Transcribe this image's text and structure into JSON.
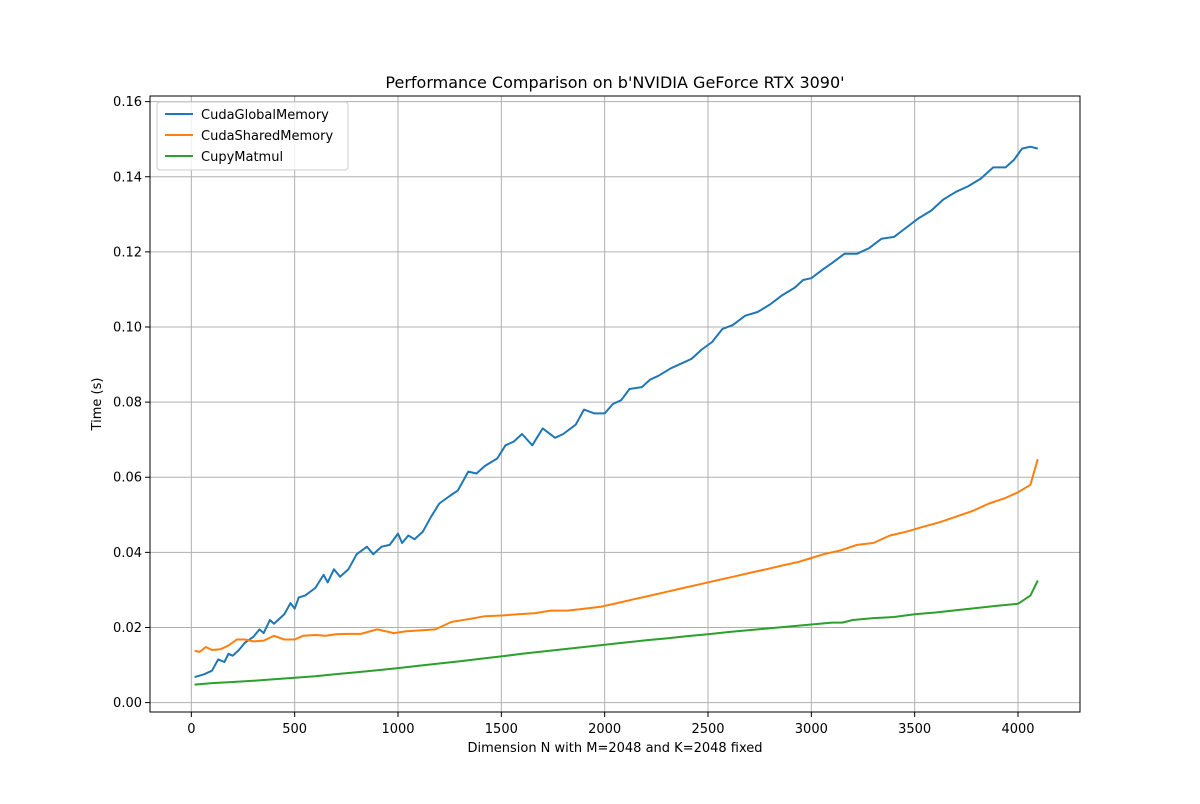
{
  "chart_data": {
    "type": "line",
    "title": "Performance Comparison on b'NVIDIA GeForce RTX 3090'",
    "xlabel": "Dimension N with M=2048 and K=2048 fixed",
    "ylabel": "Time (s)",
    "xlim": [
      -200,
      4300
    ],
    "ylim": [
      -0.0025,
      0.1615
    ],
    "xticks": [
      0,
      500,
      1000,
      1500,
      2000,
      2500,
      3000,
      3500,
      4000
    ],
    "yticks": [
      0.0,
      0.02,
      0.04,
      0.06,
      0.08,
      0.1,
      0.12,
      0.14,
      0.16
    ],
    "xtick_labels": [
      "0",
      "500",
      "1000",
      "1500",
      "2000",
      "2500",
      "3000",
      "3500",
      "4000"
    ],
    "ytick_labels": [
      "0.00",
      "0.02",
      "0.04",
      "0.06",
      "0.08",
      "0.10",
      "0.12",
      "0.14",
      "0.16"
    ],
    "grid": true,
    "legend_position": "top-left",
    "series": [
      {
        "name": "CudaGlobalMemory",
        "color": "#1f77b4",
        "points": [
          [
            16,
            0.0068
          ],
          [
            60,
            0.0075
          ],
          [
            100,
            0.0085
          ],
          [
            130,
            0.0115
          ],
          [
            160,
            0.0108
          ],
          [
            180,
            0.013
          ],
          [
            200,
            0.0125
          ],
          [
            230,
            0.014
          ],
          [
            260,
            0.016
          ],
          [
            300,
            0.0175
          ],
          [
            330,
            0.0195
          ],
          [
            350,
            0.0185
          ],
          [
            380,
            0.022
          ],
          [
            400,
            0.021
          ],
          [
            450,
            0.0235
          ],
          [
            480,
            0.0265
          ],
          [
            500,
            0.025
          ],
          [
            520,
            0.028
          ],
          [
            550,
            0.0285
          ],
          [
            600,
            0.0305
          ],
          [
            640,
            0.034
          ],
          [
            660,
            0.032
          ],
          [
            690,
            0.0355
          ],
          [
            720,
            0.0335
          ],
          [
            760,
            0.0355
          ],
          [
            800,
            0.0395
          ],
          [
            850,
            0.0415
          ],
          [
            880,
            0.0395
          ],
          [
            920,
            0.0415
          ],
          [
            960,
            0.042
          ],
          [
            1000,
            0.045
          ],
          [
            1020,
            0.0425
          ],
          [
            1050,
            0.0445
          ],
          [
            1080,
            0.0435
          ],
          [
            1120,
            0.0455
          ],
          [
            1160,
            0.0495
          ],
          [
            1200,
            0.053
          ],
          [
            1250,
            0.055
          ],
          [
            1290,
            0.0565
          ],
          [
            1340,
            0.0615
          ],
          [
            1380,
            0.061
          ],
          [
            1420,
            0.063
          ],
          [
            1480,
            0.065
          ],
          [
            1520,
            0.0685
          ],
          [
            1560,
            0.0695
          ],
          [
            1600,
            0.0715
          ],
          [
            1650,
            0.0685
          ],
          [
            1700,
            0.073
          ],
          [
            1760,
            0.0705
          ],
          [
            1800,
            0.0715
          ],
          [
            1860,
            0.074
          ],
          [
            1900,
            0.078
          ],
          [
            1950,
            0.077
          ],
          [
            2000,
            0.077
          ],
          [
            2040,
            0.0795
          ],
          [
            2080,
            0.0805
          ],
          [
            2120,
            0.0835
          ],
          [
            2180,
            0.084
          ],
          [
            2220,
            0.086
          ],
          [
            2260,
            0.087
          ],
          [
            2320,
            0.089
          ],
          [
            2380,
            0.0905
          ],
          [
            2420,
            0.0915
          ],
          [
            2470,
            0.094
          ],
          [
            2520,
            0.096
          ],
          [
            2570,
            0.0995
          ],
          [
            2620,
            0.1005
          ],
          [
            2680,
            0.103
          ],
          [
            2740,
            0.104
          ],
          [
            2800,
            0.106
          ],
          [
            2860,
            0.1085
          ],
          [
            2920,
            0.1105
          ],
          [
            2960,
            0.1125
          ],
          [
            3000,
            0.113
          ],
          [
            3060,
            0.1155
          ],
          [
            3100,
            0.117
          ],
          [
            3160,
            0.1195
          ],
          [
            3220,
            0.1195
          ],
          [
            3280,
            0.121
          ],
          [
            3340,
            0.1235
          ],
          [
            3400,
            0.124
          ],
          [
            3460,
            0.1265
          ],
          [
            3520,
            0.129
          ],
          [
            3580,
            0.131
          ],
          [
            3640,
            0.134
          ],
          [
            3700,
            0.136
          ],
          [
            3760,
            0.1375
          ],
          [
            3820,
            0.1395
          ],
          [
            3880,
            0.1425
          ],
          [
            3940,
            0.1425
          ],
          [
            3980,
            0.1445
          ],
          [
            4020,
            0.1475
          ],
          [
            4060,
            0.148
          ],
          [
            4096,
            0.1475
          ]
        ]
      },
      {
        "name": "CudaSharedMemory",
        "color": "#ff7f0e",
        "points": [
          [
            16,
            0.0138
          ],
          [
            40,
            0.0135
          ],
          [
            70,
            0.0148
          ],
          [
            100,
            0.014
          ],
          [
            140,
            0.0142
          ],
          [
            180,
            0.0152
          ],
          [
            220,
            0.0168
          ],
          [
            260,
            0.0168
          ],
          [
            300,
            0.0163
          ],
          [
            350,
            0.0165
          ],
          [
            400,
            0.0178
          ],
          [
            450,
            0.0168
          ],
          [
            500,
            0.0168
          ],
          [
            540,
            0.0178
          ],
          [
            600,
            0.018
          ],
          [
            650,
            0.0178
          ],
          [
            700,
            0.0182
          ],
          [
            760,
            0.0183
          ],
          [
            820,
            0.0183
          ],
          [
            900,
            0.0195
          ],
          [
            980,
            0.0185
          ],
          [
            1040,
            0.019
          ],
          [
            1100,
            0.0192
          ],
          [
            1180,
            0.0195
          ],
          [
            1260,
            0.0215
          ],
          [
            1340,
            0.0222
          ],
          [
            1420,
            0.023
          ],
          [
            1500,
            0.0232
          ],
          [
            1580,
            0.0235
          ],
          [
            1660,
            0.0238
          ],
          [
            1740,
            0.0245
          ],
          [
            1820,
            0.0245
          ],
          [
            1900,
            0.025
          ],
          [
            1980,
            0.0255
          ],
          [
            2060,
            0.0265
          ],
          [
            2140,
            0.0275
          ],
          [
            2220,
            0.0285
          ],
          [
            2300,
            0.0295
          ],
          [
            2380,
            0.0305
          ],
          [
            2460,
            0.0315
          ],
          [
            2540,
            0.0325
          ],
          [
            2620,
            0.0335
          ],
          [
            2700,
            0.0345
          ],
          [
            2780,
            0.0355
          ],
          [
            2860,
            0.0365
          ],
          [
            2940,
            0.0375
          ],
          [
            3000,
            0.0385
          ],
          [
            3060,
            0.0395
          ],
          [
            3140,
            0.0405
          ],
          [
            3220,
            0.042
          ],
          [
            3300,
            0.0425
          ],
          [
            3380,
            0.0445
          ],
          [
            3460,
            0.0455
          ],
          [
            3540,
            0.0468
          ],
          [
            3620,
            0.048
          ],
          [
            3700,
            0.0495
          ],
          [
            3780,
            0.051
          ],
          [
            3860,
            0.053
          ],
          [
            3940,
            0.0545
          ],
          [
            4000,
            0.056
          ],
          [
            4060,
            0.058
          ],
          [
            4096,
            0.0648
          ]
        ]
      },
      {
        "name": "CupyMatmul",
        "color": "#2ca02c",
        "points": [
          [
            16,
            0.0048
          ],
          [
            100,
            0.0052
          ],
          [
            200,
            0.0055
          ],
          [
            300,
            0.0058
          ],
          [
            400,
            0.0062
          ],
          [
            500,
            0.0066
          ],
          [
            600,
            0.007
          ],
          [
            700,
            0.0076
          ],
          [
            800,
            0.0081
          ],
          [
            900,
            0.0086
          ],
          [
            1000,
            0.0092
          ],
          [
            1100,
            0.0098
          ],
          [
            1200,
            0.0104
          ],
          [
            1300,
            0.011
          ],
          [
            1400,
            0.0117
          ],
          [
            1500,
            0.0123
          ],
          [
            1600,
            0.013
          ],
          [
            1700,
            0.0136
          ],
          [
            1800,
            0.0142
          ],
          [
            1900,
            0.0148
          ],
          [
            2000,
            0.0154
          ],
          [
            2100,
            0.016
          ],
          [
            2200,
            0.0166
          ],
          [
            2300,
            0.0171
          ],
          [
            2400,
            0.0177
          ],
          [
            2500,
            0.0182
          ],
          [
            2600,
            0.0188
          ],
          [
            2700,
            0.0193
          ],
          [
            2800,
            0.0198
          ],
          [
            2900,
            0.0203
          ],
          [
            3000,
            0.0208
          ],
          [
            3100,
            0.0213
          ],
          [
            3150,
            0.0213
          ],
          [
            3200,
            0.022
          ],
          [
            3300,
            0.0225
          ],
          [
            3400,
            0.0228
          ],
          [
            3500,
            0.0235
          ],
          [
            3600,
            0.024
          ],
          [
            3700,
            0.0246
          ],
          [
            3800,
            0.0252
          ],
          [
            3900,
            0.0258
          ],
          [
            4000,
            0.0263
          ],
          [
            4060,
            0.0285
          ],
          [
            4096,
            0.0325
          ]
        ]
      }
    ]
  }
}
